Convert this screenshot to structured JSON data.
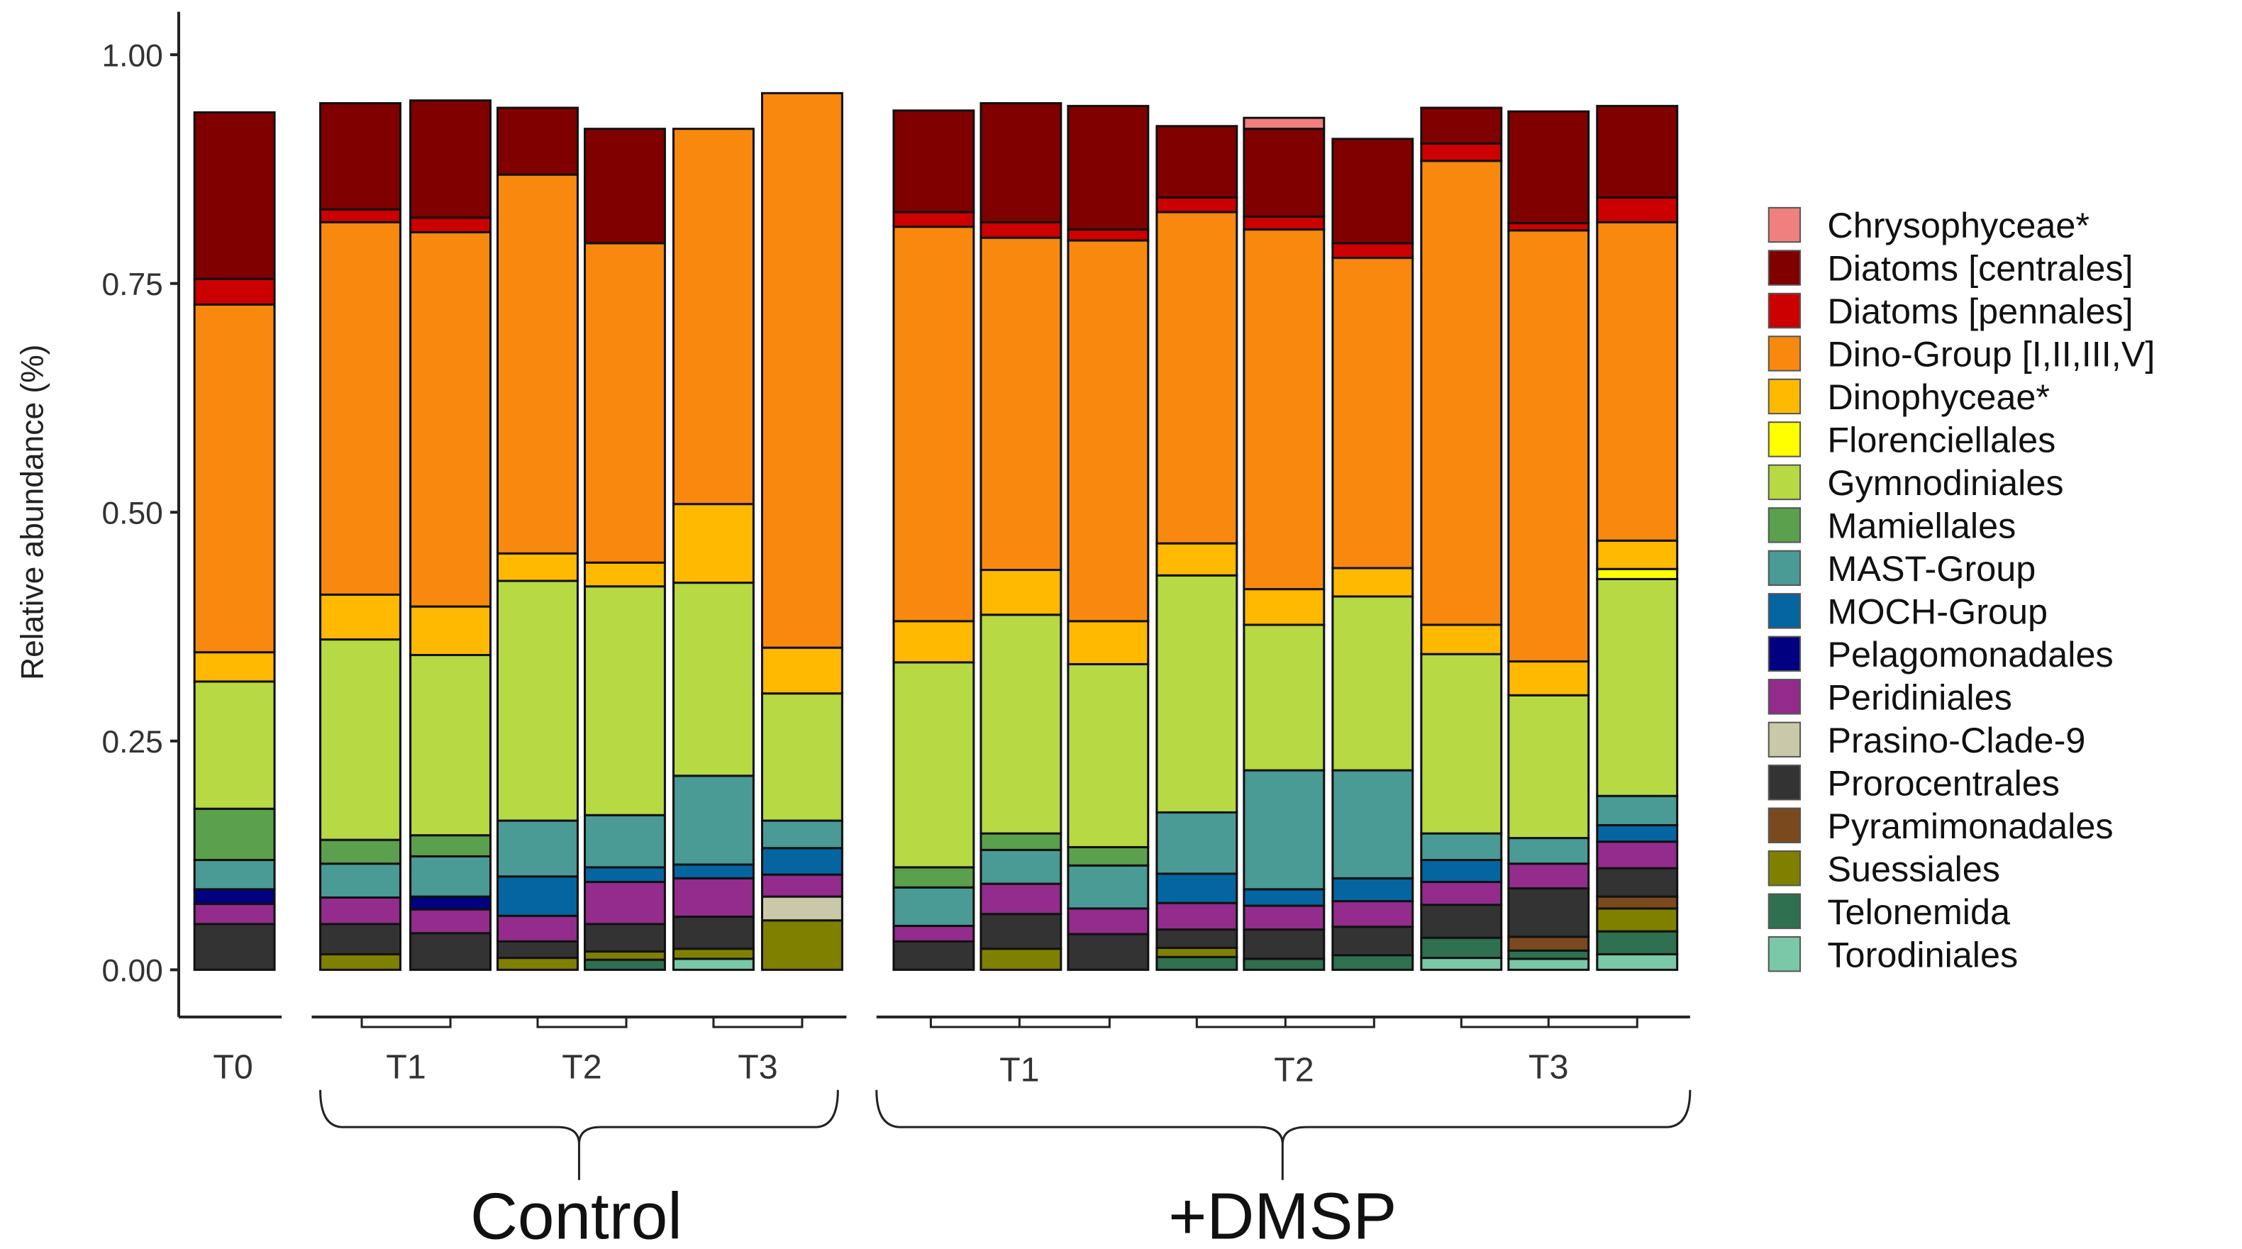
{
  "chart_data": {
    "type": "bar",
    "stacked": true,
    "ylabel": "Relative abundance (%)",
    "ylim": [
      0,
      1.0
    ],
    "yticks": [
      "0.00",
      "0.25",
      "0.50",
      "0.75",
      "1.00"
    ],
    "ytick_values": [
      0,
      0.25,
      0.5,
      0.75,
      1.0
    ],
    "bars": [
      "T0",
      "Control-T1a",
      "Control-T1b",
      "Control-T2a",
      "Control-T2b",
      "Control-T3a",
      "Control-T3b",
      "DMSP-T1a",
      "DMSP-T1b",
      "DMSP-T1c",
      "DMSP-T2a",
      "DMSP-T2b",
      "DMSP-T2c",
      "DMSP-T3a",
      "DMSP-T3b",
      "DMSP-T3c"
    ],
    "time_labels": {
      "t0": "T0",
      "t1": "T1",
      "t2": "T2",
      "t3": "T3"
    },
    "group_labels": {
      "control": "Control",
      "dmsp": "+DMSP"
    },
    "legend_position": "right",
    "series": [
      {
        "name": "Chrysophyceae*",
        "color": "#f08080",
        "values": [
          0,
          0,
          0,
          0,
          0,
          0,
          0,
          0,
          0,
          0,
          0,
          0.012,
          0,
          0,
          0,
          0
        ]
      },
      {
        "name": "Diatoms [centrales]",
        "color": "#800000",
        "values": [
          0.182,
          0.116,
          0.128,
          0.073,
          0.125,
          0,
          0,
          0.111,
          0.13,
          0.135,
          0.078,
          0.096,
          0.114,
          0.039,
          0.122,
          0.1
        ]
      },
      {
        "name": "Diatoms [pennales]",
        "color": "#cc0000",
        "values": [
          0.028,
          0.014,
          0.016,
          0,
          0,
          0,
          0,
          0.016,
          0.017,
          0.012,
          0.016,
          0.014,
          0.016,
          0.019,
          0.008,
          0.027
        ]
      },
      {
        "name": "Dino-Group [I,II,III,V]",
        "color": "#f8890e",
        "values": [
          0.38,
          0.407,
          0.409,
          0.414,
          0.349,
          0.41,
          0.606,
          0.431,
          0.363,
          0.416,
          0.362,
          0.393,
          0.339,
          0.507,
          0.471,
          0.348
        ]
      },
      {
        "name": "Dinophyceae*",
        "color": "#ffb900",
        "values": [
          0.032,
          0.049,
          0.053,
          0.03,
          0.026,
          0.086,
          0.05,
          0.045,
          0.049,
          0.047,
          0.035,
          0.039,
          0.031,
          0.032,
          0.037,
          0.031
        ]
      },
      {
        "name": "Florenciellales",
        "color": "#ffff00",
        "values": [
          0,
          0,
          0,
          0,
          0,
          0,
          0,
          0,
          0,
          0,
          0,
          0,
          0,
          0,
          0,
          0.011
        ]
      },
      {
        "name": "Gymnodiniales",
        "color": "#b6d944",
        "values": [
          0.139,
          0.219,
          0.197,
          0.262,
          0.25,
          0.211,
          0.139,
          0.224,
          0.239,
          0.2,
          0.259,
          0.159,
          0.19,
          0.196,
          0.156,
          0.237
        ]
      },
      {
        "name": "Mamiellales",
        "color": "#5ba04c",
        "values": [
          0.056,
          0.026,
          0.023,
          0,
          0,
          0,
          0,
          0.022,
          0.018,
          0.02,
          0,
          0,
          0,
          0,
          0,
          0
        ]
      },
      {
        "name": "MAST-Group",
        "color": "#4a9a95",
        "values": [
          0.032,
          0.037,
          0.044,
          0.061,
          0.057,
          0.097,
          0.03,
          0.042,
          0.037,
          0.047,
          0.067,
          0.13,
          0.118,
          0.029,
          0.028,
          0.032
        ]
      },
      {
        "name": "MOCH-Group",
        "color": "#0565a0",
        "values": [
          0,
          0,
          0,
          0.043,
          0.016,
          0.015,
          0.029,
          0,
          0,
          0,
          0.032,
          0.018,
          0.025,
          0.024,
          0,
          0.018
        ]
      },
      {
        "name": "Pelagomonadales",
        "color": "#000080",
        "values": [
          0.016,
          0,
          0.014,
          0,
          0,
          0,
          0,
          0,
          0,
          0,
          0,
          0,
          0,
          0,
          0,
          0
        ]
      },
      {
        "name": "Peridiniales",
        "color": "#932c8c",
        "values": [
          0.022,
          0.029,
          0.026,
          0.028,
          0.046,
          0.042,
          0.024,
          0.017,
          0.033,
          0.028,
          0.029,
          0.026,
          0.028,
          0.025,
          0.027,
          0.029
        ]
      },
      {
        "name": "Prasino-Clade-9",
        "color": "#c9c9a9",
        "values": [
          0,
          0,
          0,
          0,
          0,
          0,
          0.026,
          0,
          0,
          0,
          0,
          0,
          0,
          0,
          0,
          0
        ]
      },
      {
        "name": "Prorocentrales",
        "color": "#333333",
        "values": [
          0.05,
          0.033,
          0.04,
          0.018,
          0.03,
          0.035,
          0,
          0.031,
          0.038,
          0.039,
          0.02,
          0.032,
          0.031,
          0.036,
          0.053,
          0.031
        ]
      },
      {
        "name": "Pyramimonadales",
        "color": "#7a4a1e",
        "values": [
          0,
          0,
          0,
          0,
          0,
          0,
          0,
          0,
          0,
          0,
          0,
          0,
          0,
          0,
          0.015,
          0.013
        ]
      },
      {
        "name": "Suessiales",
        "color": "#808000",
        "values": [
          0,
          0.017,
          0,
          0.013,
          0.009,
          0.011,
          0.054,
          0,
          0.023,
          0,
          0.01,
          0,
          0,
          0,
          0,
          0.025
        ]
      },
      {
        "name": "Telonemida",
        "color": "#2e7050",
        "values": [
          0,
          0,
          0,
          0,
          0.011,
          0,
          0,
          0,
          0,
          0,
          0.014,
          0.012,
          0.016,
          0.022,
          0.009,
          0.025
        ]
      },
      {
        "name": "Torodiniales",
        "color": "#7ac8a8",
        "values": [
          0,
          0,
          0,
          0,
          0,
          0.012,
          0,
          0,
          0,
          0,
          0,
          0,
          0,
          0.013,
          0.012,
          0.017
        ]
      }
    ]
  }
}
